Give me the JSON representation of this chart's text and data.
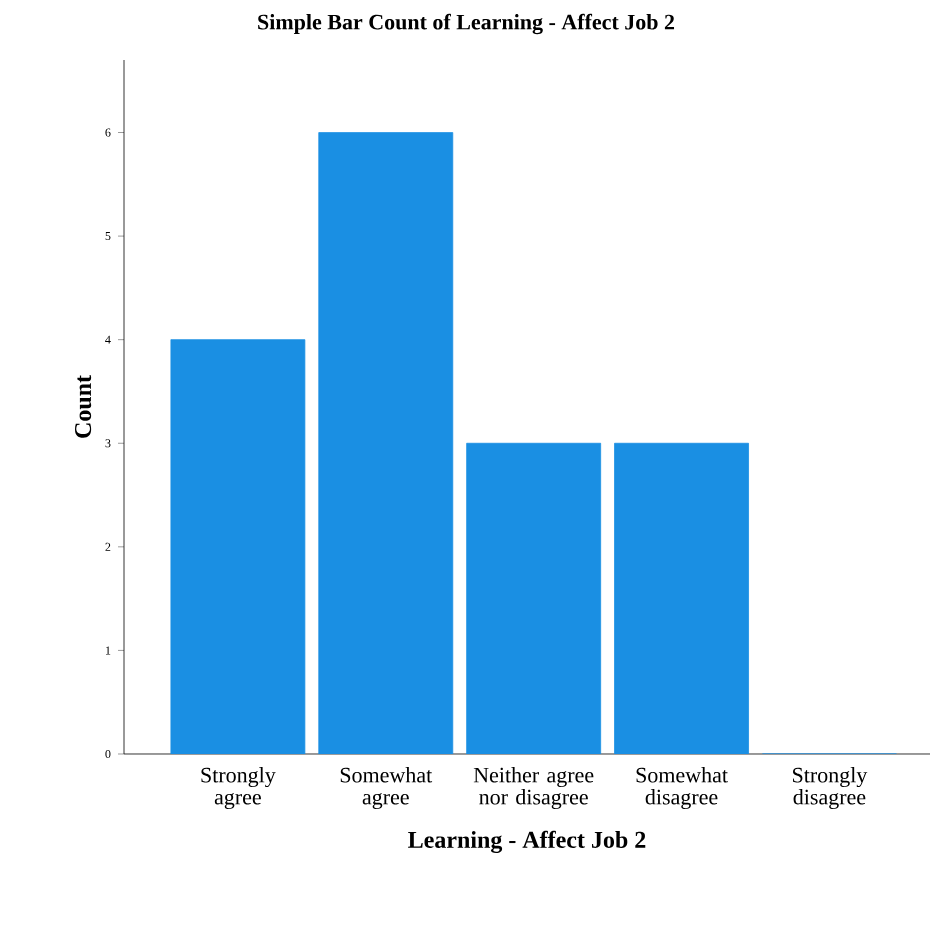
{
  "chart_data": {
    "type": "bar",
    "title": "Simple Bar Count of Learning - Affect Job 2",
    "xlabel": "Learning - Affect Job 2",
    "ylabel": "Count",
    "categories": [
      "Strongly agree",
      "Somewhat agree",
      "Neither agree nor disagree",
      "Somewhat disagree",
      "Strongly disagree"
    ],
    "values": [
      4,
      6,
      3,
      3,
      0
    ],
    "color": "#1a8fe3",
    "ylim": [
      0,
      6.7
    ],
    "yticks": [
      0,
      1,
      2,
      3,
      4,
      5,
      6
    ],
    "grid": false
  }
}
